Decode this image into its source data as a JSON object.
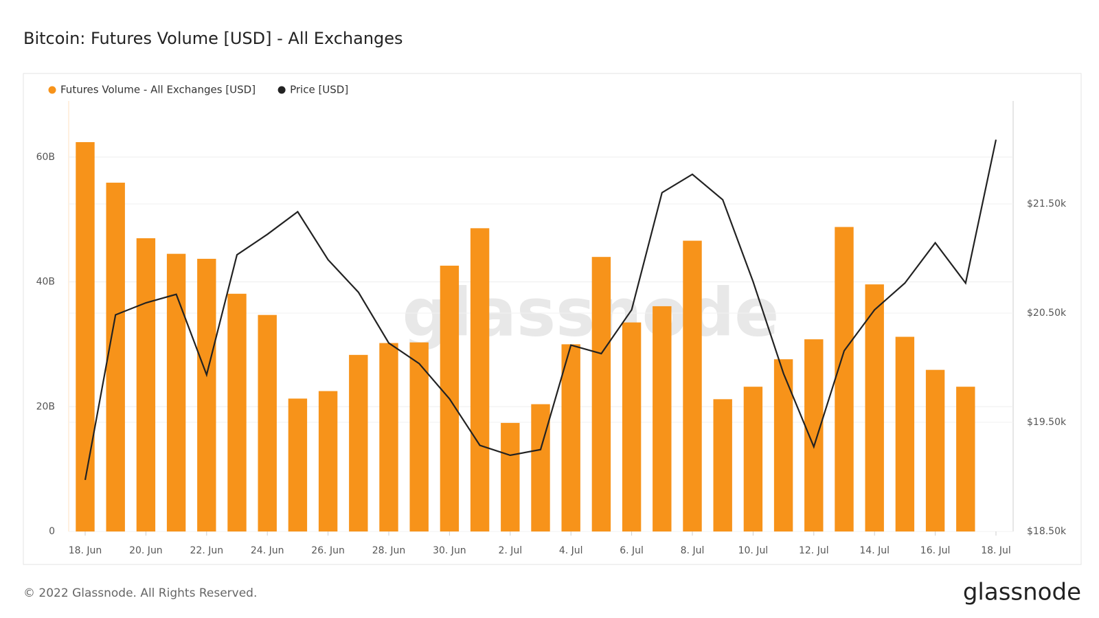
{
  "chart_data": {
    "type": "bar_line",
    "title": "Bitcoin: Futures Volume [USD] - All Exchanges",
    "watermark": "glassnode",
    "footer": "© 2022 Glassnode. All Rights Reserved.",
    "logo": "glassnode",
    "categories": [
      "18. Jun",
      null,
      "20. Jun",
      null,
      "22. Jun",
      null,
      "24. Jun",
      null,
      "26. Jun",
      null,
      "28. Jun",
      null,
      "30. Jun",
      null,
      "2. Jul",
      null,
      "4. Jul",
      null,
      "6. Jul",
      null,
      "8. Jul",
      null,
      "10. Jul",
      null,
      "12. Jul",
      null,
      "14. Jul",
      null,
      "16. Jul",
      null,
      "18. Jul"
    ],
    "series": [
      {
        "name": "Futures Volume - All Exchanges [USD]",
        "color": "#f7931a",
        "kind": "bar",
        "axis": "y",
        "values": [
          62.4,
          55.9,
          47.0,
          44.5,
          43.7,
          38.1,
          34.7,
          21.3,
          22.5,
          28.3,
          30.2,
          30.3,
          42.6,
          48.6,
          17.4,
          20.4,
          30.0,
          44.0,
          33.5,
          36.1,
          46.6,
          21.2,
          23.2,
          27.6,
          30.8,
          48.8,
          39.6,
          31.2,
          25.9,
          23.2,
          null
        ]
      },
      {
        "name": "Price [USD]",
        "color": "#222222",
        "kind": "line",
        "axis": "y2",
        "values": [
          18972,
          20484,
          20594,
          20672,
          19935,
          21034,
          21221,
          21428,
          20989,
          20691,
          20226,
          20038,
          19715,
          19289,
          19198,
          19250,
          20207,
          20129,
          20530,
          21603,
          21771,
          21538,
          20788,
          19948,
          19276,
          20155,
          20530,
          20775,
          21144,
          20775,
          22088
        ]
      }
    ],
    "ylim": [
      0,
      69
    ],
    "yticks": [
      0,
      {
        "value": 20,
        "label": "20B"
      },
      {
        "value": 40,
        "label": "40B"
      },
      {
        "value": 60,
        "label": "60B"
      }
    ],
    "y2lim": [
      18500,
      22443
    ],
    "y2ticks": [
      {
        "value": 18500,
        "label": "$18.50k"
      },
      {
        "value": 19500,
        "label": "$19.50k"
      },
      {
        "value": 20500,
        "label": "$20.50k"
      },
      {
        "value": 21500,
        "label": "$21.50k"
      }
    ],
    "grid": true
  }
}
